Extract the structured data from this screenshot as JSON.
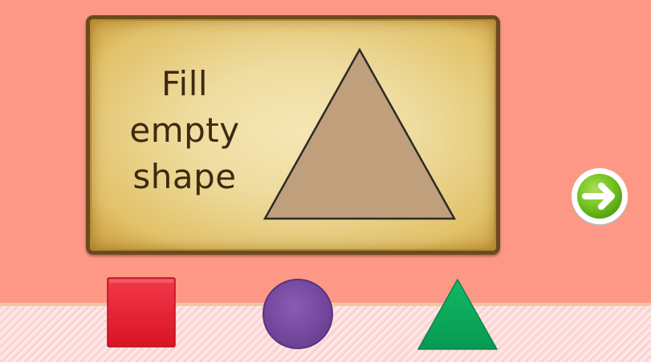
{
  "board": {
    "instruction_lines": [
      "Fill",
      "empty",
      "shape"
    ],
    "target_shape": {
      "name": "triangle",
      "fill": "#bf9f7c",
      "stroke": "#2d2a25"
    }
  },
  "next_button": {
    "icon": "arrow-right-icon",
    "color": "#6fbf1e"
  },
  "pieces": [
    {
      "name": "square",
      "color": "#ee1b2e"
    },
    {
      "name": "circle",
      "color": "#7c4ea3"
    },
    {
      "name": "triangle",
      "color": "#0ba75a"
    }
  ],
  "colors": {
    "background": "#fd9887",
    "board_border": "#6b4a1c"
  }
}
